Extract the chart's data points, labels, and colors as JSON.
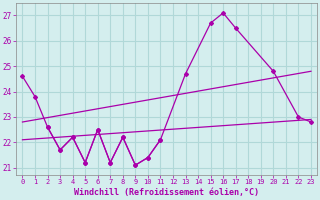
{
  "xlabel": "Windchill (Refroidissement éolien,°C)",
  "background_color": "#d4eeee",
  "grid_color": "#b0d8d8",
  "line_color": "#aa00aa",
  "ylim": [
    20.7,
    27.5
  ],
  "yticks": [
    21,
    22,
    23,
    24,
    25,
    26,
    27
  ],
  "xticks": [
    0,
    1,
    2,
    3,
    4,
    5,
    6,
    7,
    8,
    9,
    10,
    11,
    12,
    13,
    14,
    15,
    16,
    17,
    18,
    19,
    20,
    21,
    22,
    23
  ],
  "line_main_x": [
    0,
    1,
    2,
    3,
    4,
    5,
    6,
    7,
    8,
    9,
    10,
    11,
    13,
    15,
    16,
    17,
    20,
    22,
    23
  ],
  "line_main_y": [
    24.6,
    23.8,
    22.6,
    21.7,
    22.2,
    21.2,
    22.5,
    21.2,
    22.2,
    21.1,
    21.4,
    22.1,
    24.7,
    26.7,
    27.1,
    26.5,
    24.8,
    23.0,
    22.8
  ],
  "line_upper_trend_x": [
    0,
    23
  ],
  "line_upper_trend_y": [
    22.8,
    24.8
  ],
  "line_lower_trend_x": [
    0,
    23
  ],
  "line_lower_trend_y": [
    22.1,
    22.9
  ],
  "line_mid_x": [
    2,
    3,
    4,
    5,
    6,
    7,
    8,
    9,
    10,
    11,
    13,
    14,
    15,
    16,
    17,
    18,
    20,
    21,
    22,
    23
  ],
  "line_mid_y": [
    22.6,
    21.7,
    22.2,
    21.2,
    22.5,
    21.2,
    22.2,
    21.1,
    21.4,
    22.1,
    24.7,
    25.2,
    26.7,
    27.1,
    26.5,
    26.3,
    24.8,
    23.3,
    23.0,
    22.8
  ]
}
